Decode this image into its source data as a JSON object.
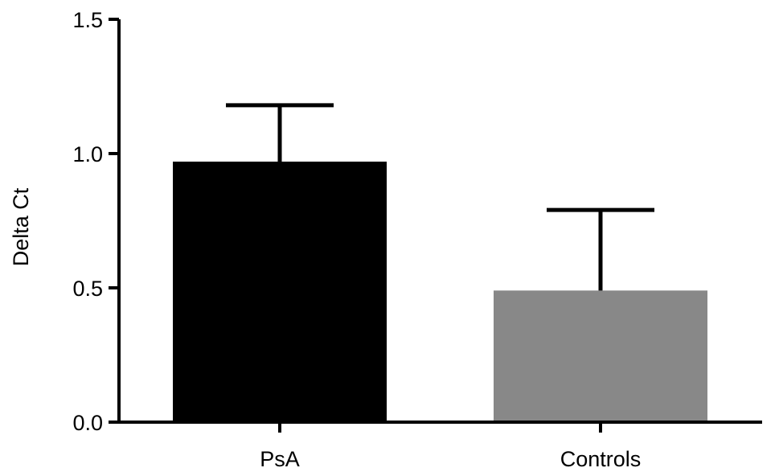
{
  "chart_data": {
    "type": "bar",
    "title": "",
    "xlabel": "",
    "ylabel": "Delta Ct",
    "ylim": [
      0,
      1.5
    ],
    "yticks": [
      0.0,
      0.5,
      1.0,
      1.5
    ],
    "ytick_labels": [
      "0.0",
      "0.5",
      "1.0",
      "1.5"
    ],
    "categories": [
      "PsA",
      "Controls"
    ],
    "values": [
      0.97,
      0.49
    ],
    "error_upper": [
      1.18,
      0.79
    ],
    "colors": [
      "#000000",
      "#888888"
    ],
    "grid": false,
    "legend": false
  }
}
